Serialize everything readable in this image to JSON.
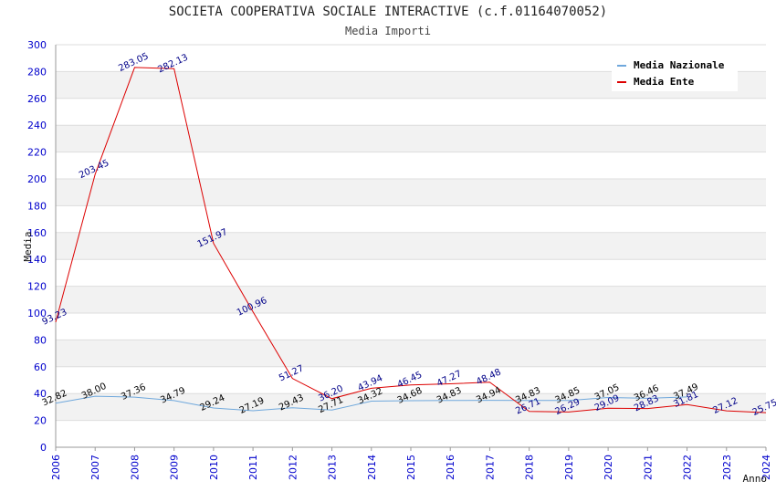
{
  "title": "SOCIETA COOPERATIVA SOCIALE INTERACTIVE (c.f.01164070052)",
  "subtitle": "Media Importi",
  "chart_data": {
    "type": "line",
    "title": "SOCIETA COOPERATIVA SOCIALE INTERACTIVE (c.f.01164070052)",
    "subtitle": "Media Importi",
    "xlabel": "Anno",
    "ylabel": "Media",
    "ylim": [
      0,
      300
    ],
    "yticks": [
      0,
      20,
      40,
      60,
      80,
      100,
      120,
      140,
      160,
      180,
      200,
      220,
      240,
      260,
      280,
      300
    ],
    "grid": "horizontal banded",
    "legend_position": "top-right",
    "categories": [
      "2006",
      "2007",
      "2008",
      "2009",
      "2010",
      "2011",
      "2012",
      "2013",
      "2014",
      "2015",
      "2016",
      "2017",
      "2018",
      "2019",
      "2020",
      "2021",
      "2022",
      "2023",
      "2024"
    ],
    "series": [
      {
        "name": "Media Nazionale",
        "color": "#6fa8dc",
        "values": [
          32.82,
          38.0,
          37.36,
          34.79,
          29.24,
          27.19,
          29.43,
          27.71,
          34.32,
          34.68,
          34.83,
          34.94,
          34.83,
          34.85,
          37.05,
          36.46,
          37.49,
          null,
          null
        ],
        "labels": [
          "32.82",
          "38.00",
          "37.36",
          "34.79",
          "29.24",
          "27.19",
          "29.43",
          "27.71",
          "34.32",
          "34.68",
          "34.83",
          "34.94",
          "34.83",
          "34.85",
          "37.05",
          "36.46",
          "37.49",
          "",
          ""
        ]
      },
      {
        "name": "Media Ente",
        "color": "#dd0000",
        "values": [
          93.23,
          203.45,
          283.05,
          282.13,
          151.97,
          100.96,
          51.27,
          36.2,
          43.94,
          46.45,
          47.27,
          48.48,
          26.71,
          26.29,
          29.09,
          28.83,
          31.81,
          27.12,
          25.75
        ],
        "labels": [
          "93.23",
          "203.45",
          "283.05",
          "282.13",
          "151.97",
          "100.96",
          "51.27",
          "36.20",
          "43.94",
          "46.45",
          "47.27",
          "48.48",
          "26.71",
          "26.29",
          "29.09",
          "28.83",
          "31.81",
          "27.12",
          "25.75"
        ]
      }
    ]
  }
}
